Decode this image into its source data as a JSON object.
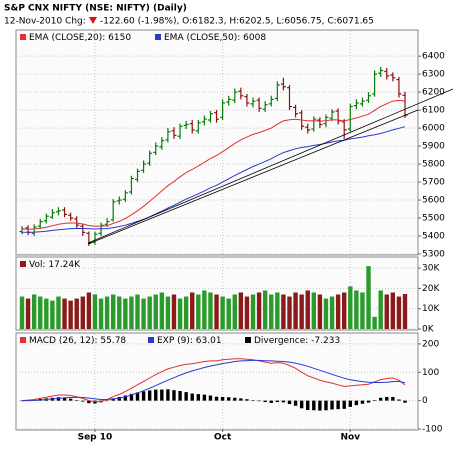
{
  "header": {
    "title": "S&P CNX NIFTY (NSE: NIFTY) (Daily)",
    "date_change": "12-Nov-2010 Chg:",
    "change": "-122.60 (-1.98%), O:6182.3, H:6202.5, L:6056.75, C:6071.65"
  },
  "chart_data": [
    {
      "type": "ohlc",
      "up_color": "#0a7a0a",
      "down_color": "#8b1010",
      "grid": true,
      "open": [
        5425,
        5445,
        5415,
        5455,
        5485,
        5505,
        5535,
        5545,
        5515,
        5495,
        5455,
        5415,
        5365,
        5415,
        5465,
        5490,
        5595,
        5605,
        5645,
        5715,
        5765,
        5805,
        5865,
        5895,
        5935,
        5985,
        5955,
        6015,
        6025,
        5985,
        6035,
        6045,
        6085,
        6060,
        6145,
        6155,
        6205,
        6175,
        6135,
        6155,
        6105,
        6135,
        6165,
        6245,
        6225,
        6115,
        6085,
        6005,
        5995,
        6045,
        6025,
        6055,
        6095,
        6035,
        5995,
        6125,
        6135,
        6155,
        6190,
        6305,
        6315,
        6295,
        6270,
        6182.3
      ],
      "high": [
        5455,
        5460,
        5465,
        5495,
        5525,
        5550,
        5560,
        5560,
        5530,
        5510,
        5470,
        5425,
        5425,
        5475,
        5500,
        5605,
        5620,
        5655,
        5735,
        5775,
        5820,
        5875,
        5920,
        5950,
        6000,
        6005,
        6025,
        6040,
        6045,
        6045,
        6070,
        6095,
        6100,
        6160,
        6180,
        6220,
        6225,
        6190,
        6170,
        6170,
        6150,
        6180,
        6260,
        6280,
        6240,
        6130,
        6100,
        6025,
        6065,
        6060,
        6075,
        6105,
        6110,
        6050,
        6135,
        6160,
        6170,
        6200,
        6320,
        6340,
        6335,
        6310,
        6285,
        6202.5
      ],
      "low": [
        5410,
        5405,
        5400,
        5440,
        5470,
        5495,
        5515,
        5505,
        5485,
        5445,
        5400,
        5345,
        5350,
        5400,
        5450,
        5480,
        5575,
        5590,
        5630,
        5700,
        5750,
        5790,
        5850,
        5880,
        5920,
        5940,
        5940,
        5995,
        5970,
        5970,
        6015,
        6030,
        6030,
        6045,
        6125,
        6140,
        6160,
        6120,
        6115,
        6090,
        6090,
        6120,
        6150,
        6210,
        6100,
        6060,
        5990,
        5970,
        5980,
        6000,
        6005,
        6040,
        6020,
        5940,
        5980,
        6105,
        6120,
        6140,
        6175,
        6285,
        6270,
        6260,
        6170,
        6056.75
      ],
      "close": [
        5440,
        5420,
        5450,
        5480,
        5510,
        5530,
        5540,
        5520,
        5500,
        5460,
        5420,
        5360,
        5410,
        5460,
        5480,
        5590,
        5600,
        5640,
        5720,
        5760,
        5800,
        5860,
        5900,
        5930,
        5980,
        5960,
        6010,
        6020,
        5990,
        6030,
        6050,
        6080,
        6050,
        6140,
        6160,
        6200,
        6180,
        6140,
        6150,
        6110,
        6130,
        6160,
        6240,
        6230,
        6120,
        6080,
        6010,
        5990,
        6050,
        6020,
        6060,
        6090,
        6040,
        5990,
        6120,
        6140,
        6150,
        6180,
        6300,
        6320,
        6290,
        6280,
        6190,
        6071.65
      ],
      "series": [
        {
          "name": "EMA (CLOSE,20): 6150",
          "color": "#e03030",
          "values": [
            5440,
            5438,
            5439,
            5443,
            5449,
            5457,
            5465,
            5470,
            5473,
            5472,
            5467,
            5458,
            5455,
            5455,
            5457,
            5470,
            5482,
            5497,
            5518,
            5540,
            5565,
            5593,
            5622,
            5651,
            5680,
            5703,
            5729,
            5752,
            5770,
            5790,
            5810,
            5831,
            5847,
            5869,
            5891,
            5915,
            5935,
            5950,
            5965,
            5975,
            5987,
            6000,
            6022,
            6040,
            6046,
            6049,
            6045,
            6040,
            6041,
            6039,
            6041,
            6046,
            6045,
            6040,
            6048,
            6057,
            6066,
            6077,
            6099,
            6120,
            6136,
            6150,
            6154,
            6150
          ]
        },
        {
          "name": "EMA (CLOSE,50): 6008",
          "color": "#2a3ad0",
          "values": [
            5420,
            5421,
            5422,
            5424,
            5427,
            5431,
            5435,
            5438,
            5441,
            5442,
            5442,
            5440,
            5439,
            5440,
            5441,
            5447,
            5453,
            5460,
            5470,
            5481,
            5493,
            5507,
            5523,
            5538,
            5555,
            5571,
            5588,
            5605,
            5619,
            5635,
            5651,
            5668,
            5682,
            5700,
            5718,
            5737,
            5754,
            5770,
            5786,
            5800,
            5815,
            5830,
            5848,
            5864,
            5875,
            5885,
            5892,
            5897,
            5904,
            5909,
            5916,
            5923,
            5929,
            5932,
            5940,
            5945,
            5950,
            5957,
            5963,
            5970,
            5980,
            5990,
            5999,
            6008
          ]
        }
      ],
      "ylim": [
        5300,
        6540
      ],
      "yticks": [
        5300,
        5400,
        5500,
        5600,
        5700,
        5800,
        5900,
        6000,
        6100,
        6200,
        6300,
        6400
      ]
    },
    {
      "type": "bar",
      "up_color": "#2a9a2a",
      "down_color": "#8b1a1a",
      "grid": true,
      "series": [
        {
          "name": "Vol: 17.24K",
          "color": "#8b1a1a",
          "values": [
            16,
            15,
            17,
            16,
            15,
            14,
            16,
            15,
            14,
            15,
            16,
            18,
            17,
            15,
            16,
            17,
            16,
            15,
            16,
            17,
            15,
            16,
            17,
            18,
            16,
            17,
            15,
            16,
            18,
            17,
            19,
            18,
            17,
            16,
            15,
            17,
            18,
            16,
            17,
            18,
            19,
            17,
            18,
            17,
            16,
            18,
            17,
            19,
            18,
            17,
            15,
            16,
            17,
            18,
            21,
            19,
            18,
            31,
            6,
            19,
            17,
            18,
            16,
            17.24
          ]
        }
      ],
      "ylim": [
        0,
        35
      ],
      "yticks": [
        {
          "value": 0,
          "label": "0K"
        },
        {
          "value": 10,
          "label": "10K"
        },
        {
          "value": 20,
          "label": "20K"
        },
        {
          "value": 30,
          "label": "30K"
        }
      ]
    },
    {
      "type": "macd",
      "grid": true,
      "categories": [
        null,
        null,
        null,
        null,
        null,
        null,
        null,
        null,
        null,
        null,
        null,
        null,
        "Sep 10",
        null,
        null,
        null,
        null,
        null,
        null,
        null,
        null,
        null,
        null,
        null,
        null,
        null,
        null,
        null,
        null,
        null,
        null,
        null,
        null,
        "Oct",
        null,
        null,
        null,
        null,
        null,
        null,
        null,
        null,
        null,
        null,
        null,
        null,
        null,
        null,
        null,
        null,
        null,
        null,
        null,
        null,
        "Nov",
        null,
        null,
        null,
        null,
        null,
        null,
        null,
        null,
        null
      ],
      "series": [
        {
          "name": "MACD (26, 12): 55.78",
          "color": "#e03030",
          "style": "line",
          "values": [
            0,
            2,
            4,
            8,
            12,
            16,
            20,
            20,
            18,
            14,
            8,
            0,
            -4,
            -2,
            4,
            14,
            22,
            32,
            44,
            56,
            68,
            80,
            92,
            102,
            112,
            118,
            124,
            128,
            130,
            134,
            138,
            140,
            140,
            144,
            146,
            148,
            148,
            146,
            144,
            140,
            136,
            132,
            134,
            132,
            124,
            114,
            100,
            88,
            80,
            72,
            66,
            62,
            56,
            50,
            52,
            54,
            56,
            58,
            66,
            74,
            78,
            80,
            72,
            55.78
          ]
        },
        {
          "name": "EXP (9): 63.01",
          "color": "#2a3ad0",
          "style": "line",
          "values": [
            0,
            0,
            1,
            2,
            4,
            6,
            8,
            10,
            11,
            12,
            11,
            9,
            6,
            4,
            4,
            6,
            9,
            14,
            20,
            27,
            35,
            44,
            53,
            63,
            72,
            81,
            90,
            98,
            105,
            111,
            117,
            122,
            126,
            131,
            134,
            138,
            140,
            141,
            142,
            142,
            141,
            140,
            139,
            138,
            136,
            132,
            127,
            121,
            114,
            107,
            100,
            93,
            86,
            79,
            74,
            70,
            67,
            65,
            64,
            64,
            65,
            67,
            68,
            63.01
          ]
        },
        {
          "name": "Divergence: -7.233",
          "color": "#000000",
          "style": "bar",
          "values": [
            0,
            2,
            3,
            6,
            8,
            10,
            12,
            10,
            7,
            2,
            -3,
            -9,
            -10,
            -6,
            0,
            8,
            13,
            18,
            24,
            29,
            33,
            36,
            39,
            39,
            40,
            37,
            34,
            30,
            25,
            23,
            21,
            18,
            14,
            13,
            12,
            10,
            8,
            5,
            2,
            -2,
            -5,
            -8,
            -5,
            -6,
            -12,
            -18,
            -27,
            -33,
            -34,
            -35,
            -34,
            -31,
            -30,
            -29,
            -22,
            -16,
            -11,
            -7,
            2,
            10,
            13,
            13,
            4,
            -7.233
          ]
        }
      ],
      "ylim": [
        -100,
        235
      ],
      "yticks": [
        -100,
        0,
        100,
        200
      ]
    }
  ]
}
